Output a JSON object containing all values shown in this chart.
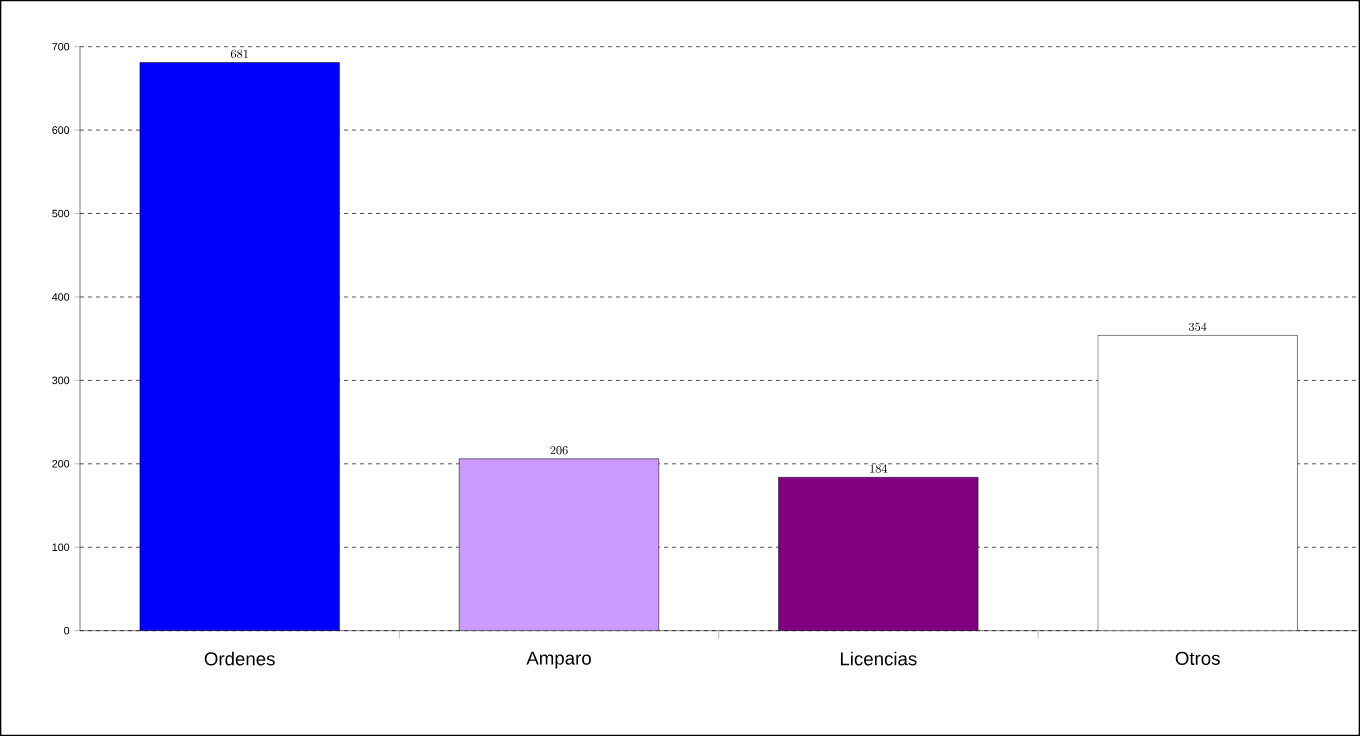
{
  "chart_data": {
    "type": "bar",
    "categories": [
      "Ordenes",
      "Amparo",
      "Licencias",
      "Otros"
    ],
    "values": [
      681,
      206,
      184,
      354
    ],
    "colors": [
      "#0000ff",
      "#cc99ff",
      "#800080",
      "#ffffff"
    ],
    "ylim": [
      0,
      700
    ],
    "yticks": [
      0,
      100,
      200,
      300,
      400,
      500,
      600,
      700
    ],
    "grid": "y",
    "data_labels": true
  }
}
